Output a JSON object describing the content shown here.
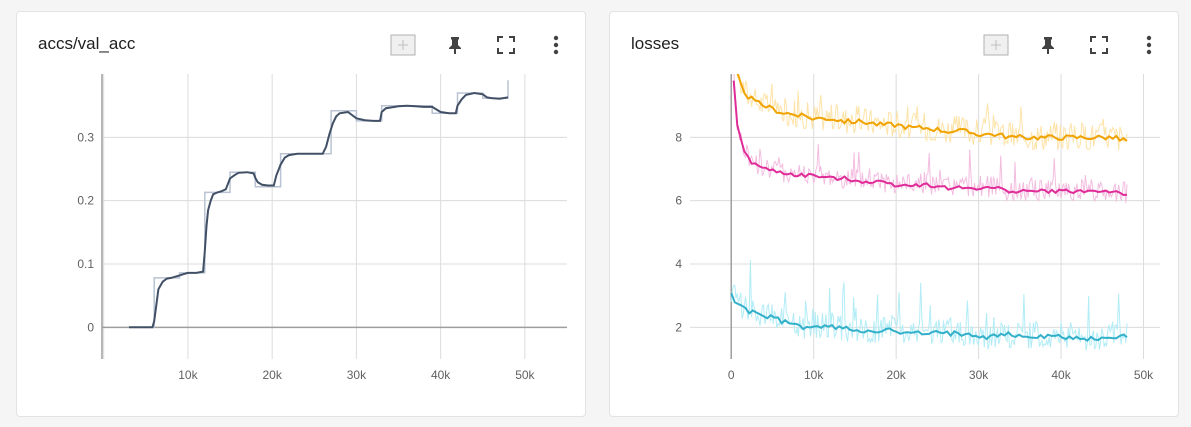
{
  "cards": [
    {
      "title": "accs/val_acc"
    },
    {
      "title": "losses"
    }
  ],
  "toolbar_icons": [
    "fit-domain-icon",
    "pin-icon",
    "fullscreen-icon",
    "more-vert-icon"
  ],
  "colors": {
    "grid": "#dcdcdc",
    "axis": "#9e9e9e",
    "acc": "#425066",
    "acc_raw": "#b9c3d3",
    "orange": "#f0a300",
    "orange_raw": "#fde3a8",
    "pink": "#e02c98",
    "pink_raw": "#f3bde0",
    "cyan": "#33b0c9",
    "cyan_raw": "#b2ecf6"
  },
  "chart_data": [
    {
      "type": "line",
      "title": "accs/val_acc",
      "xlim": [
        -200,
        55000
      ],
      "ylim": [
        -0.05,
        0.4
      ],
      "xticks": [
        0,
        10000,
        20000,
        30000,
        40000,
        50000
      ],
      "xtick_labels": [
        "",
        "10k",
        "20k",
        "30k",
        "40k",
        "50k"
      ],
      "yticks": [
        0,
        0.1,
        0.2,
        0.3
      ],
      "ytick_labels": [
        "0",
        "0.1",
        "0.2",
        "0.3"
      ],
      "grid": true,
      "series": [
        {
          "x": [
            3000,
            5800,
            6000,
            6200,
            6500,
            7000,
            7500,
            8000,
            8500,
            9000,
            9500,
            10000,
            10500,
            11000,
            11800,
            12000,
            12200,
            12400,
            12700,
            13000,
            13500,
            14000,
            14500,
            15000,
            15500,
            16000,
            17000,
            17800,
            18000,
            18300,
            18800,
            19500,
            20200,
            20500,
            21000,
            21500,
            22000,
            23000,
            24000,
            25000,
            26000,
            26400,
            26800,
            27200,
            27600,
            28000,
            29000,
            30000,
            31000,
            32000,
            32800,
            33000,
            33500,
            34000,
            35000,
            36000,
            37000,
            38000,
            39000,
            40000,
            41000,
            41800,
            42000,
            42500,
            43000,
            44000,
            45000,
            45500,
            46000,
            47000,
            48000
          ],
          "y": [
            0,
            0,
            0.01,
            0.03,
            0.06,
            0.072,
            0.077,
            0.078,
            0.08,
            0.082,
            0.084,
            0.086,
            0.086,
            0.086,
            0.088,
            0.12,
            0.16,
            0.185,
            0.2,
            0.21,
            0.213,
            0.215,
            0.218,
            0.235,
            0.24,
            0.244,
            0.245,
            0.243,
            0.236,
            0.229,
            0.225,
            0.224,
            0.224,
            0.24,
            0.257,
            0.268,
            0.272,
            0.274,
            0.274,
            0.274,
            0.274,
            0.285,
            0.305,
            0.322,
            0.333,
            0.338,
            0.34,
            0.33,
            0.327,
            0.326,
            0.326,
            0.34,
            0.346,
            0.347,
            0.349,
            0.35,
            0.349,
            0.348,
            0.348,
            0.34,
            0.338,
            0.338,
            0.35,
            0.36,
            0.367,
            0.37,
            0.368,
            0.363,
            0.362,
            0.361,
            0.363
          ]
        },
        {
          "x": [
            3000,
            6000,
            6000,
            9000,
            9000,
            12000,
            12000,
            15000,
            15000,
            18000,
            18000,
            21000,
            21000,
            27000,
            27000,
            30000,
            30000,
            33000,
            33000,
            36000,
            36000,
            39000,
            39000,
            42000,
            42000,
            45000,
            45000,
            48000,
            48000
          ],
          "y": [
            0,
            0,
            0.078,
            0.078,
            0.086,
            0.086,
            0.213,
            0.213,
            0.245,
            0.245,
            0.222,
            0.222,
            0.274,
            0.274,
            0.342,
            0.342,
            0.326,
            0.326,
            0.35,
            0.35,
            0.35,
            0.35,
            0.338,
            0.338,
            0.37,
            0.37,
            0.362,
            0.362,
            0.39
          ]
        }
      ]
    },
    {
      "type": "line",
      "title": "losses",
      "xlim": [
        -5000,
        52000
      ],
      "ylim": [
        1,
        10
      ],
      "xticks": [
        0,
        10000,
        20000,
        30000,
        40000,
        50000
      ],
      "xtick_labels": [
        "0",
        "10k",
        "20k",
        "30k",
        "40k",
        "50k"
      ],
      "yticks": [
        2,
        4,
        6,
        8
      ],
      "ytick_labels": [
        "2",
        "4",
        "6",
        "8"
      ],
      "grid": true,
      "series": [
        {
          "x": [
            300,
            1000,
            2000,
            3000,
            4000,
            5000,
            6000,
            8000,
            10000,
            12000,
            14000,
            16000,
            18000,
            20000,
            22000,
            24000,
            26000,
            28000,
            30000,
            32000,
            34000,
            36000,
            38000,
            40000,
            42000,
            44000,
            46000,
            48000
          ],
          "y": [
            10.5,
            9.7,
            9.3,
            9.1,
            9.0,
            8.9,
            8.8,
            8.7,
            8.6,
            8.6,
            8.5,
            8.5,
            8.4,
            8.4,
            8.3,
            8.3,
            8.2,
            8.2,
            8.1,
            8.1,
            8.0,
            8.0,
            8.0,
            8.0,
            8.0,
            8.0,
            8.0,
            7.9
          ]
        },
        {
          "x": [
            300,
            800,
            1500,
            2500,
            4000,
            6000,
            8000,
            10000,
            12000,
            14000,
            16000,
            18000,
            20000,
            22000,
            24000,
            26000,
            28000,
            30000,
            32000,
            34000,
            36000,
            38000,
            40000,
            42000,
            44000,
            46000,
            48000
          ],
          "y": [
            9.8,
            8.2,
            7.6,
            7.2,
            7.0,
            6.9,
            6.8,
            6.8,
            6.7,
            6.7,
            6.6,
            6.6,
            6.5,
            6.5,
            6.5,
            6.4,
            6.4,
            6.4,
            6.4,
            6.3,
            6.3,
            6.3,
            6.3,
            6.3,
            6.3,
            6.3,
            6.2
          ]
        },
        {
          "x": [
            0,
            500,
            1500,
            3000,
            5000,
            7000,
            9000,
            11000,
            13000,
            15000,
            17000,
            19000,
            21000,
            23000,
            25000,
            27000,
            29000,
            31000,
            33000,
            35000,
            37000,
            39000,
            41000,
            43000,
            45000,
            47000,
            48000
          ],
          "y": [
            3.1,
            2.8,
            2.6,
            2.4,
            2.3,
            2.1,
            2.0,
            2.0,
            2.0,
            1.9,
            1.9,
            1.9,
            1.8,
            1.8,
            1.8,
            1.8,
            1.8,
            1.7,
            1.8,
            1.7,
            1.7,
            1.7,
            1.7,
            1.6,
            1.7,
            1.7,
            1.7
          ]
        }
      ]
    }
  ]
}
